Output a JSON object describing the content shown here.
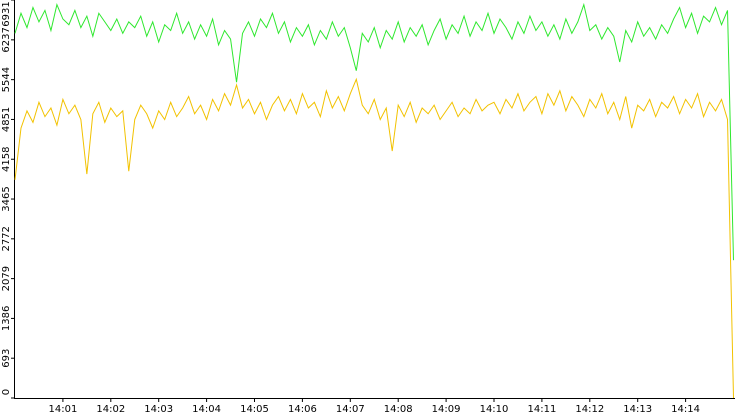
{
  "chart_data": {
    "type": "line",
    "x": [
      840,
      840.125,
      840.25,
      840.375,
      840.5,
      840.625,
      840.75,
      840.875,
      841,
      841.125,
      841.25,
      841.375,
      841.5,
      841.625,
      841.75,
      841.875,
      842,
      842.125,
      842.25,
      842.375,
      842.5,
      842.625,
      842.75,
      842.875,
      843,
      843.125,
      843.25,
      843.375,
      843.5,
      843.625,
      843.75,
      843.875,
      844,
      844.125,
      844.25,
      844.375,
      844.5,
      844.625,
      844.75,
      844.875,
      845,
      845.125,
      845.25,
      845.375,
      845.5,
      845.625,
      845.75,
      845.875,
      846,
      846.125,
      846.25,
      846.375,
      846.5,
      846.625,
      846.75,
      846.875,
      847,
      847.125,
      847.25,
      847.375,
      847.5,
      847.625,
      847.75,
      847.875,
      848,
      848.125,
      848.25,
      848.375,
      848.5,
      848.625,
      848.75,
      848.875,
      849,
      849.125,
      849.25,
      849.375,
      849.5,
      849.625,
      849.75,
      849.875,
      850,
      850.125,
      850.25,
      850.375,
      850.5,
      850.625,
      850.75,
      850.875,
      851,
      851.125,
      851.25,
      851.375,
      851.5,
      851.625,
      851.75,
      851.875,
      852,
      852.125,
      852.25,
      852.375,
      852.5,
      852.625,
      852.75,
      852.875,
      853,
      853.125,
      853.25,
      853.375,
      853.5,
      853.625,
      853.75,
      853.875,
      854,
      854.125,
      854.25,
      854.375,
      854.5,
      854.625,
      854.75,
      854.875,
      855
    ],
    "series": [
      {
        "color": "#2ee82e",
        "values": [
          6350,
          6700,
          6450,
          6800,
          6550,
          6750,
          6400,
          6850,
          6600,
          6500,
          6750,
          6450,
          6650,
          6300,
          6700,
          6550,
          6400,
          6600,
          6350,
          6550,
          6450,
          6650,
          6300,
          6550,
          6200,
          6500,
          6400,
          6700,
          6350,
          6550,
          6250,
          6500,
          6300,
          6600,
          6150,
          6400,
          6250,
          5500,
          6350,
          6550,
          6300,
          6600,
          6450,
          6700,
          6350,
          6550,
          6200,
          6450,
          6300,
          6500,
          6150,
          6400,
          6250,
          6550,
          6300,
          6450,
          6100,
          5700,
          6350,
          6200,
          6450,
          6100,
          6400,
          6250,
          6550,
          6200,
          6450,
          6300,
          6500,
          6150,
          6400,
          6600,
          6250,
          6500,
          6350,
          6650,
          6300,
          6550,
          6400,
          6700,
          6350,
          6600,
          6450,
          6250,
          6550,
          6350,
          6650,
          6400,
          6550,
          6300,
          6500,
          6250,
          6600,
          6350,
          6550,
          6850,
          6400,
          6500,
          6250,
          6450,
          6300,
          5850,
          6400,
          6200,
          6550,
          6300,
          6450,
          6250,
          6500,
          6350,
          6600,
          6800,
          6450,
          6700,
          6350,
          6650,
          6550,
          6800,
          6500,
          6750,
          2400
        ]
      },
      {
        "color": "#f2c200",
        "values": [
          3800,
          4700,
          5000,
          4800,
          5150,
          4900,
          5050,
          4750,
          5200,
          4950,
          5100,
          4850,
          3900,
          4950,
          5150,
          4800,
          5050,
          4900,
          5000,
          3950,
          4850,
          5100,
          4950,
          4700,
          5000,
          4850,
          5150,
          4900,
          5050,
          5250,
          4950,
          5100,
          4850,
          5200,
          5000,
          5300,
          5100,
          5450,
          5050,
          5200,
          4950,
          5150,
          4850,
          5100,
          5250,
          5000,
          5200,
          4950,
          5300,
          5050,
          5150,
          4900,
          5350,
          5050,
          5250,
          5000,
          5300,
          5550,
          5100,
          4950,
          5200,
          4850,
          5050,
          4300,
          5100,
          4900,
          5150,
          4800,
          5050,
          4950,
          5100,
          4850,
          5000,
          5150,
          4900,
          5050,
          4950,
          5200,
          5000,
          5100,
          5150,
          4950,
          5200,
          5050,
          5300,
          5000,
          5150,
          5250,
          4950,
          5300,
          5100,
          5350,
          5000,
          5250,
          5100,
          4900,
          5200,
          5050,
          5300,
          4950,
          5150,
          4850,
          5250,
          4700,
          5100,
          5000,
          5200,
          4900,
          5150,
          5050,
          5250,
          4950,
          5200,
          5050,
          5300,
          4900,
          5150,
          5000,
          5200,
          4850,
          0
        ]
      }
    ],
    "xlim": [
      840,
      855
    ],
    "xticks": [
      {
        "value": 841,
        "label": "14:01"
      },
      {
        "value": 842,
        "label": "14:02"
      },
      {
        "value": 843,
        "label": "14:03"
      },
      {
        "value": 844,
        "label": "14:04"
      },
      {
        "value": 845,
        "label": "14:05"
      },
      {
        "value": 846,
        "label": "14:06"
      },
      {
        "value": 847,
        "label": "14:07"
      },
      {
        "value": 848,
        "label": "14:08"
      },
      {
        "value": 849,
        "label": "14:09"
      },
      {
        "value": 850,
        "label": "14:10"
      },
      {
        "value": 851,
        "label": "14:11"
      },
      {
        "value": 852,
        "label": "14:12"
      },
      {
        "value": 853,
        "label": "14:13"
      },
      {
        "value": 854,
        "label": "14:14"
      }
    ],
    "ylim": [
      0,
      6931
    ],
    "yticks": [
      0,
      693,
      1386,
      2079,
      2772,
      3465,
      4158,
      4851,
      5544,
      6237,
      6931
    ]
  }
}
